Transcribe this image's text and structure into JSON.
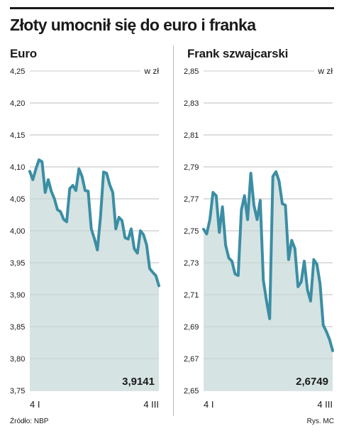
{
  "title": "Złoty umocnił się do euro i franka",
  "source": "Źródło: NBP",
  "credit": "Rys. MC",
  "colors": {
    "line": "#3b8ea4",
    "area": "#d6e3e3",
    "grid": "#9a9a9a"
  },
  "chart_data": [
    {
      "type": "area",
      "title": "Euro",
      "unit": "w zł",
      "ylim": [
        3.75,
        4.25
      ],
      "yticks": [
        3.75,
        3.8,
        3.85,
        3.9,
        3.95,
        4.0,
        4.05,
        4.1,
        4.15,
        4.2,
        4.25
      ],
      "ytick_labels": [
        "3,75",
        "3,80",
        "3,85",
        "3,90",
        "3,95",
        "4,00",
        "4,05",
        "4,10",
        "4,15",
        "4,20",
        "4,25"
      ],
      "xtick_labels": [
        "4 I",
        "4 III"
      ],
      "last_value_label": "3,9141",
      "grid": true,
      "values": [
        4.093,
        4.08,
        4.097,
        4.111,
        4.108,
        4.06,
        4.08,
        4.062,
        4.05,
        4.033,
        4.03,
        4.018,
        4.014,
        4.066,
        4.071,
        4.063,
        4.097,
        4.085,
        4.063,
        4.062,
        4.003,
        3.988,
        3.97,
        4.022,
        4.092,
        4.09,
        4.072,
        4.06,
        4.003,
        4.021,
        4.016,
        3.989,
        3.987,
        4.003,
        3.972,
        3.965,
        4.0,
        3.994,
        3.978,
        3.941,
        3.935,
        3.93,
        3.914
      ]
    },
    {
      "type": "area",
      "title": "Frank szwajcarski",
      "unit": "w zł",
      "ylim": [
        2.65,
        2.85
      ],
      "yticks": [
        2.65,
        2.67,
        2.69,
        2.71,
        2.73,
        2.75,
        2.77,
        2.79,
        2.81,
        2.83,
        2.85
      ],
      "ytick_labels": [
        "2,65",
        "2,67",
        "2,69",
        "2,71",
        "2,73",
        "2,75",
        "2,77",
        "2,79",
        "2,81",
        "2,83",
        "2,85"
      ],
      "xtick_labels": [
        "4 I",
        "4 III"
      ],
      "last_value_label": "2,6749",
      "grid": true,
      "values": [
        2.751,
        2.748,
        2.757,
        2.774,
        2.772,
        2.749,
        2.765,
        2.741,
        2.733,
        2.731,
        2.723,
        2.722,
        2.763,
        2.772,
        2.757,
        2.786,
        2.766,
        2.757,
        2.769,
        2.719,
        2.706,
        2.695,
        2.784,
        2.787,
        2.781,
        2.767,
        2.766,
        2.732,
        2.744,
        2.739,
        2.715,
        2.718,
        2.731,
        2.713,
        2.706,
        2.732,
        2.729,
        2.717,
        2.691,
        2.687,
        2.682,
        2.675
      ]
    }
  ]
}
